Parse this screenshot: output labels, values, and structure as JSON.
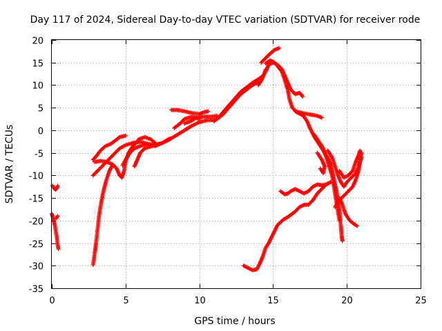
{
  "chart_data": {
    "type": "scatter",
    "title": "Day 117 of 2024, Sidereal Day-to-day VTEC variation (SDTVAR) for receiver rode",
    "xlabel": "GPS time / hours",
    "ylabel": "SDTVAR / TECUs",
    "xlim": [
      0,
      25
    ],
    "ylim": [
      -35,
      20
    ],
    "xticks": [
      0,
      5,
      10,
      15,
      20,
      25
    ],
    "yticks": [
      -35,
      -30,
      -25,
      -20,
      -15,
      -10,
      -5,
      0,
      5,
      10,
      15,
      20
    ],
    "grid": true,
    "legend": "none",
    "marker": "plus",
    "color": "#ff0000",
    "series": [
      {
        "points": [
          [
            0.05,
            -12.3
          ],
          [
            0.15,
            -12.8
          ],
          [
            0.25,
            -13.2
          ],
          [
            0.35,
            -12.8
          ],
          [
            0.4,
            -12.3
          ]
        ]
      },
      {
        "points": [
          [
            0.0,
            -18.5
          ],
          [
            0.1,
            -19.5
          ],
          [
            0.2,
            -21.0
          ],
          [
            0.28,
            -22.5
          ],
          [
            0.35,
            -24.0
          ],
          [
            0.4,
            -25.5
          ],
          [
            0.45,
            -26.3
          ]
        ]
      },
      {
        "points": [
          [
            0.3,
            -19.5
          ],
          [
            0.4,
            -19.0
          ]
        ]
      },
      {
        "points": [
          [
            2.8,
            -29.8
          ],
          [
            2.9,
            -27.5
          ],
          [
            3.0,
            -25.0
          ],
          [
            3.1,
            -22.0
          ],
          [
            3.2,
            -19.0
          ],
          [
            3.35,
            -16.0
          ],
          [
            3.5,
            -13.5
          ],
          [
            3.7,
            -11.0
          ],
          [
            3.9,
            -9.0
          ],
          [
            4.1,
            -7.8
          ]
        ]
      },
      {
        "points": [
          [
            2.8,
            -10.0
          ],
          [
            3.1,
            -9.0
          ],
          [
            3.4,
            -8.0
          ],
          [
            3.7,
            -7.0
          ],
          [
            4.0,
            -6.0
          ],
          [
            4.3,
            -5.0
          ],
          [
            4.6,
            -4.0
          ],
          [
            5.0,
            -3.3
          ],
          [
            5.5,
            -2.8
          ],
          [
            6.0,
            -2.6
          ],
          [
            6.5,
            -3.0
          ],
          [
            7.0,
            -3.3
          ],
          [
            7.5,
            -2.8
          ],
          [
            8.0,
            -2.0
          ],
          [
            8.5,
            -1.0
          ],
          [
            9.0,
            0.0
          ],
          [
            9.5,
            1.0
          ],
          [
            10.0,
            1.8
          ],
          [
            10.5,
            2.2
          ],
          [
            11.0,
            2.3
          ]
        ]
      },
      {
        "points": [
          [
            2.8,
            -6.5
          ],
          [
            3.0,
            -5.8
          ],
          [
            3.3,
            -4.5
          ],
          [
            3.6,
            -3.6
          ],
          [
            4.0,
            -3.0
          ],
          [
            4.3,
            -2.3
          ],
          [
            4.6,
            -1.5
          ],
          [
            5.0,
            -1.2
          ]
        ]
      },
      {
        "points": [
          [
            2.9,
            -7.0
          ],
          [
            3.3,
            -6.8
          ],
          [
            3.7,
            -7.0
          ],
          [
            4.1,
            -7.5
          ],
          [
            4.4,
            -8.5
          ],
          [
            4.6,
            -10.0
          ],
          [
            4.75,
            -10.5
          ],
          [
            4.9,
            -9.0
          ],
          [
            5.0,
            -7.0
          ],
          [
            5.2,
            -5.0
          ],
          [
            5.5,
            -3.5
          ],
          [
            5.9,
            -2.0
          ],
          [
            6.3,
            -1.5
          ],
          [
            6.7,
            -2.0
          ],
          [
            7.0,
            -2.8
          ]
        ]
      },
      {
        "points": [
          [
            4.8,
            -7.8
          ],
          [
            5.0,
            -6.5
          ],
          [
            5.3,
            -5.0
          ],
          [
            5.6,
            -4.0
          ],
          [
            6.0,
            -3.5
          ],
          [
            6.5,
            -3.0
          ],
          [
            7.0,
            -3.5
          ],
          [
            7.5,
            -2.8
          ],
          [
            8.0,
            -1.8
          ]
        ]
      },
      {
        "points": [
          [
            5.6,
            -8.0
          ],
          [
            5.8,
            -6.5
          ],
          [
            6.0,
            -5.0
          ],
          [
            6.3,
            -4.0
          ],
          [
            6.8,
            -3.5
          ],
          [
            7.3,
            -3.0
          ]
        ]
      },
      {
        "points": [
          [
            8.1,
            4.5
          ],
          [
            8.5,
            4.5
          ],
          [
            9.0,
            4.2
          ],
          [
            9.5,
            3.8
          ],
          [
            10.0,
            3.6
          ],
          [
            10.3,
            4.0
          ],
          [
            10.6,
            4.2
          ]
        ]
      },
      {
        "points": [
          [
            9.0,
            1.5
          ],
          [
            9.4,
            2.0
          ],
          [
            9.8,
            2.8
          ],
          [
            10.3,
            3.0
          ],
          [
            10.8,
            3.0
          ],
          [
            11.2,
            3.2
          ]
        ]
      },
      {
        "points": [
          [
            8.3,
            0.5
          ],
          [
            8.7,
            1.5
          ],
          [
            9.0,
            2.5
          ],
          [
            9.5,
            3.0
          ],
          [
            10.0,
            2.5
          ]
        ]
      },
      {
        "points": [
          [
            11.0,
            2.0
          ],
          [
            11.3,
            2.8
          ],
          [
            11.6,
            4.0
          ],
          [
            12.0,
            5.5
          ],
          [
            12.4,
            7.0
          ],
          [
            12.8,
            8.5
          ],
          [
            13.2,
            9.5
          ],
          [
            13.6,
            10.5
          ],
          [
            14.0,
            11.3
          ],
          [
            14.3,
            12.0
          ],
          [
            14.5,
            13.0
          ],
          [
            14.7,
            14.5
          ],
          [
            15.0,
            15.0
          ],
          [
            15.3,
            14.5
          ],
          [
            15.6,
            13.5
          ],
          [
            15.8,
            12.0
          ],
          [
            16.0,
            10.5
          ],
          [
            16.2,
            9.0
          ],
          [
            16.5,
            8.0
          ],
          [
            16.8,
            8.3
          ],
          [
            17.0,
            7.5
          ]
        ]
      },
      {
        "points": [
          [
            11.2,
            2.5
          ],
          [
            11.6,
            3.5
          ],
          [
            12.0,
            5.0
          ],
          [
            12.4,
            6.5
          ],
          [
            12.8,
            8.0
          ],
          [
            13.2,
            9.0
          ],
          [
            13.6,
            10.0
          ],
          [
            14.0,
            10.8
          ]
        ]
      },
      {
        "points": [
          [
            14.0,
            10.0
          ],
          [
            14.2,
            11.0
          ],
          [
            14.4,
            12.5
          ],
          [
            14.5,
            13.5
          ]
        ]
      },
      {
        "points": [
          [
            14.2,
            15.0
          ],
          [
            14.5,
            16.0
          ],
          [
            14.8,
            17.0
          ],
          [
            15.1,
            17.8
          ],
          [
            15.4,
            18.2
          ]
        ]
      },
      {
        "points": [
          [
            14.5,
            14.8
          ],
          [
            14.8,
            15.5
          ],
          [
            15.1,
            15.0
          ]
        ]
      },
      {
        "points": [
          [
            15.3,
            14.2
          ],
          [
            15.6,
            13.0
          ],
          [
            15.8,
            11.0
          ],
          [
            16.0,
            9.0
          ],
          [
            16.1,
            7.0
          ],
          [
            16.3,
            5.0
          ],
          [
            16.6,
            4.0
          ],
          [
            16.9,
            3.5
          ],
          [
            17.1,
            3.0
          ],
          [
            17.3,
            2.0
          ],
          [
            17.5,
            0.5
          ]
        ]
      },
      {
        "points": [
          [
            16.5,
            4.2
          ],
          [
            17.0,
            3.8
          ],
          [
            17.5,
            3.5
          ],
          [
            18.0,
            3.2
          ],
          [
            18.3,
            2.8
          ]
        ]
      },
      {
        "points": [
          [
            17.5,
            0.5
          ],
          [
            17.8,
            -1.5
          ],
          [
            18.1,
            -3.0
          ],
          [
            18.4,
            -4.5
          ],
          [
            18.7,
            -6.0
          ],
          [
            18.9,
            -7.5
          ],
          [
            19.0,
            -9.0
          ],
          [
            19.1,
            -10.5
          ],
          [
            19.2,
            -12.0
          ],
          [
            19.3,
            -13.5
          ],
          [
            19.4,
            -15.5
          ],
          [
            19.5,
            -17.5
          ],
          [
            19.55,
            -19.5
          ],
          [
            19.6,
            -21.5
          ],
          [
            19.65,
            -23.5
          ],
          [
            19.7,
            -24.5
          ]
        ]
      },
      {
        "points": [
          [
            17.8,
            -1.0
          ],
          [
            18.1,
            -2.5
          ],
          [
            18.4,
            -4.0
          ],
          [
            18.6,
            -6.0
          ],
          [
            18.8,
            -8.0
          ],
          [
            19.0,
            -10.0
          ],
          [
            19.1,
            -12.0
          ],
          [
            19.2,
            -14.0
          ],
          [
            19.3,
            -16.0
          ],
          [
            19.4,
            -18.0
          ],
          [
            19.5,
            -20.0
          ]
        ]
      },
      {
        "points": [
          [
            18.0,
            -5.0
          ],
          [
            18.3,
            -6.5
          ],
          [
            18.5,
            -8.0
          ],
          [
            18.4,
            -9.5
          ],
          [
            18.2,
            -8.5
          ]
        ]
      },
      {
        "points": [
          [
            18.7,
            -4.5
          ],
          [
            19.0,
            -6.0
          ],
          [
            19.2,
            -8.0
          ],
          [
            19.4,
            -10.0
          ],
          [
            19.6,
            -11.5
          ],
          [
            19.8,
            -12.5
          ],
          [
            20.0,
            -11.5
          ],
          [
            20.3,
            -10.5
          ],
          [
            20.6,
            -9.5
          ],
          [
            20.8,
            -8.0
          ],
          [
            20.9,
            -6.5
          ],
          [
            21.0,
            -5.0
          ]
        ]
      },
      {
        "points": [
          [
            19.5,
            -9.0
          ],
          [
            19.8,
            -10.5
          ],
          [
            20.1,
            -10.0
          ],
          [
            20.4,
            -9.0
          ],
          [
            20.6,
            -7.0
          ],
          [
            20.8,
            -5.5
          ],
          [
            20.9,
            -4.5
          ]
        ]
      },
      {
        "points": [
          [
            19.5,
            -15.0
          ],
          [
            19.7,
            -16.5
          ],
          [
            19.9,
            -18.5
          ],
          [
            20.2,
            -20.0
          ],
          [
            20.5,
            -20.8
          ],
          [
            20.7,
            -21.2
          ]
        ]
      },
      {
        "points": [
          [
            19.2,
            -17.0
          ],
          [
            19.5,
            -15.5
          ],
          [
            19.8,
            -14.5
          ],
          [
            20.1,
            -13.5
          ],
          [
            20.4,
            -12.5
          ],
          [
            20.6,
            -11.0
          ],
          [
            20.8,
            -9.0
          ],
          [
            20.9,
            -7.0
          ],
          [
            21.0,
            -6.0
          ]
        ]
      },
      {
        "points": [
          [
            15.5,
            -13.5
          ],
          [
            15.8,
            -14.2
          ],
          [
            16.0,
            -14.0
          ],
          [
            16.2,
            -13.5
          ],
          [
            16.5,
            -13.0
          ],
          [
            16.8,
            -13.5
          ],
          [
            17.1,
            -14.0
          ],
          [
            17.4,
            -13.5
          ],
          [
            17.7,
            -12.5
          ],
          [
            18.0,
            -12.0
          ],
          [
            18.3,
            -12.2
          ],
          [
            18.6,
            -12.0
          ],
          [
            18.9,
            -11.5
          ]
        ]
      },
      {
        "points": [
          [
            13.0,
            -30.0
          ],
          [
            13.3,
            -30.5
          ],
          [
            13.6,
            -31.0
          ],
          [
            13.9,
            -30.8
          ],
          [
            14.1,
            -29.5
          ],
          [
            14.3,
            -28.0
          ],
          [
            14.5,
            -26.0
          ],
          [
            14.7,
            -25.0
          ],
          [
            15.0,
            -23.0
          ],
          [
            15.3,
            -21.0
          ],
          [
            15.7,
            -19.8
          ],
          [
            16.1,
            -19.0
          ],
          [
            16.5,
            -18.0
          ],
          [
            16.8,
            -17.0
          ],
          [
            17.1,
            -16.5
          ],
          [
            17.4,
            -16.5
          ],
          [
            17.7,
            -15.5
          ],
          [
            18.0,
            -14.0
          ],
          [
            18.3,
            -13.0
          ],
          [
            18.6,
            -12.0
          ]
        ]
      }
    ]
  }
}
